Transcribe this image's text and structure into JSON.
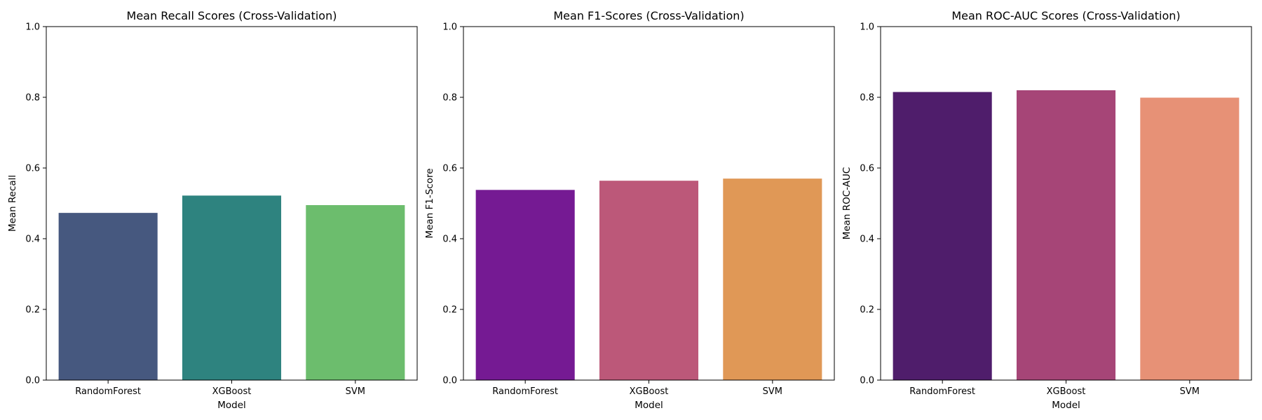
{
  "chart_data": [
    {
      "type": "bar",
      "title": "Mean Recall Scores (Cross-Validation)",
      "xlabel": "Model",
      "ylabel": "Mean Recall",
      "ylim": [
        0,
        1.0
      ],
      "yticks": [
        "0.0",
        "0.2",
        "0.4",
        "0.6",
        "0.8",
        "1.0"
      ],
      "categories": [
        "RandomForest",
        "XGBoost",
        "SVM"
      ],
      "values": [
        0.473,
        0.522,
        0.495
      ],
      "colors": [
        "#46587f",
        "#2e837f",
        "#6cbd6d"
      ],
      "grid": false
    },
    {
      "type": "bar",
      "title": "Mean F1-Scores (Cross-Validation)",
      "xlabel": "Model",
      "ylabel": "Mean F1-Score",
      "ylim": [
        0,
        1.0
      ],
      "yticks": [
        "0.0",
        "0.2",
        "0.4",
        "0.6",
        "0.8",
        "1.0"
      ],
      "categories": [
        "RandomForest",
        "XGBoost",
        "SVM"
      ],
      "values": [
        0.538,
        0.564,
        0.57
      ],
      "colors": [
        "#751a93",
        "#bc5879",
        "#e09856"
      ],
      "grid": false
    },
    {
      "type": "bar",
      "title": "Mean ROC-AUC Scores (Cross-Validation)",
      "xlabel": "Model",
      "ylabel": "Mean ROC-AUC",
      "ylim": [
        0,
        1.0
      ],
      "yticks": [
        "0.0",
        "0.2",
        "0.4",
        "0.6",
        "0.8",
        "1.0"
      ],
      "categories": [
        "RandomForest",
        "XGBoost",
        "SVM"
      ],
      "values": [
        0.815,
        0.82,
        0.799
      ],
      "colors": [
        "#4f1d6b",
        "#a64577",
        "#e79176"
      ],
      "grid": false
    }
  ]
}
